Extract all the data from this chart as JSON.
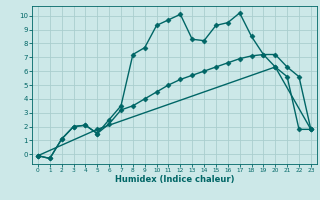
{
  "xlabel": "Humidex (Indice chaleur)",
  "ylabel": "",
  "bg_color": "#cce8e8",
  "grid_color": "#aacece",
  "line_color": "#006666",
  "xlim": [
    -0.5,
    23.5
  ],
  "ylim": [
    -0.7,
    10.7
  ],
  "xticks": [
    0,
    1,
    2,
    3,
    4,
    5,
    6,
    7,
    8,
    9,
    10,
    11,
    12,
    13,
    14,
    15,
    16,
    17,
    18,
    19,
    20,
    21,
    22,
    23
  ],
  "yticks": [
    0,
    1,
    2,
    3,
    4,
    5,
    6,
    7,
    8,
    9,
    10
  ],
  "line1_x": [
    0,
    1,
    2,
    3,
    4,
    5,
    6,
    7,
    8,
    9,
    10,
    11,
    12,
    13,
    14,
    15,
    16,
    17,
    18,
    19,
    20,
    21,
    22,
    23
  ],
  "line1_y": [
    -0.1,
    -0.3,
    1.1,
    2.0,
    2.1,
    1.5,
    2.5,
    3.5,
    7.2,
    7.7,
    9.3,
    9.7,
    10.1,
    8.3,
    8.2,
    9.3,
    9.5,
    10.2,
    8.5,
    7.2,
    7.2,
    6.3,
    5.6,
    1.8
  ],
  "line2_x": [
    0,
    1,
    2,
    3,
    4,
    5,
    6,
    7,
    8,
    9,
    10,
    11,
    12,
    13,
    14,
    15,
    16,
    17,
    18,
    19,
    20,
    21,
    22,
    23
  ],
  "line2_y": [
    -0.1,
    -0.3,
    1.1,
    2.0,
    2.1,
    1.5,
    2.2,
    3.2,
    3.5,
    4.0,
    4.5,
    5.0,
    5.4,
    5.7,
    6.0,
    6.3,
    6.6,
    6.9,
    7.1,
    7.2,
    6.3,
    5.6,
    1.8,
    1.8
  ],
  "line3_x": [
    0,
    5,
    20,
    23
  ],
  "line3_y": [
    -0.1,
    1.8,
    6.3,
    1.8
  ],
  "marker": "D",
  "markersize": 2.5,
  "linewidth": 1.0,
  "xlabel_fontsize": 6.0,
  "tick_fontsize_x": 4.2,
  "tick_fontsize_y": 5.0
}
